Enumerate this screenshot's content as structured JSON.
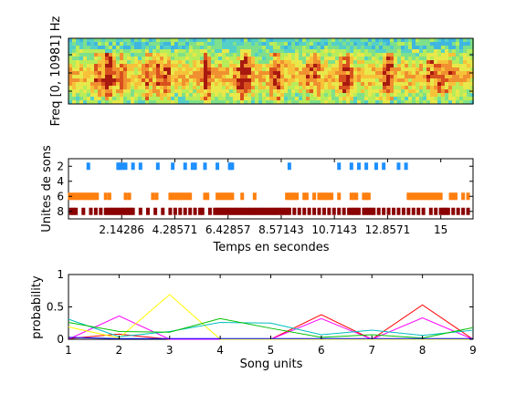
{
  "chart_data": [
    {
      "type": "heatmap",
      "title": "",
      "ylabel": "Freq [0, 10981] Hz",
      "colormap": "jet",
      "description_values": {
        "y_range_hz": [
          0,
          10981
        ],
        "x_range_s": [
          0,
          16.3
        ]
      }
    },
    {
      "type": "scatter",
      "ylabel": "Unites de sons",
      "xlabel": "Temps en secondes",
      "x_ticks": [
        "2.14286",
        "4.28571",
        "6.42857",
        "8.57143",
        "10.7143",
        "12.8571",
        "15"
      ],
      "x_tick_values": [
        2.14286,
        4.28571,
        6.42857,
        8.57143,
        10.7143,
        12.8571,
        15
      ],
      "y_ticks": [
        "2",
        "4",
        "6",
        "8"
      ],
      "y_tick_values": [
        2,
        4,
        6,
        8
      ],
      "xlim": [
        0,
        16.3
      ],
      "ylim": [
        1,
        9
      ],
      "reversed_y": true,
      "series": [
        {
          "color": "#1e90ff",
          "y": 2,
          "x": [
            0.8,
            2.0,
            2.05,
            2.1,
            2.2,
            2.3,
            2.6,
            2.9,
            3.6,
            4.2,
            4.7,
            5.0,
            5.1,
            5.5,
            6.0,
            6.5,
            6.55,
            6.6,
            8.9,
            10.9,
            11.4,
            11.7,
            12.0,
            12.4,
            12.7,
            13.3,
            13.6
          ]
        },
        {
          "color": "#ff7f0e",
          "y": 6,
          "x": [
            0.05,
            0.15,
            0.25,
            0.35,
            0.45,
            0.55,
            0.65,
            0.75,
            0.85,
            0.95,
            1.05,
            1.15,
            1.5,
            1.65,
            2.3,
            2.45,
            3.4,
            3.55,
            4.1,
            4.2,
            4.3,
            4.4,
            4.5,
            4.6,
            4.7,
            4.8,
            4.9,
            5.5,
            5.6,
            6.0,
            6.1,
            6.2,
            6.3,
            6.4,
            6.5,
            6.6,
            7.0,
            7.5,
            8.8,
            8.9,
            9.0,
            9.1,
            9.2,
            9.5,
            9.6,
            9.9,
            10.1,
            10.2,
            10.3,
            10.4,
            10.5,
            10.6,
            10.9,
            11.4,
            11.5,
            11.6,
            11.9,
            12.0,
            12.1,
            13.7,
            13.8,
            13.9,
            14.0,
            14.1,
            14.2,
            14.3,
            14.4,
            14.5,
            14.6,
            14.7,
            14.8,
            14.9,
            15.0,
            15.4,
            15.5,
            15.6,
            15.9,
            16.1
          ]
        },
        {
          "color": "#8b0000",
          "y": 8,
          "x": [
            0.1,
            0.2,
            0.3,
            0.6,
            0.9,
            1.1,
            1.3,
            1.5,
            1.6,
            1.7,
            1.8,
            1.9,
            2.0,
            2.1,
            2.2,
            2.3,
            2.4,
            2.5,
            2.6,
            2.9,
            3.2,
            3.5,
            3.8,
            4.1,
            4.3,
            4.5,
            4.7,
            4.9,
            5.1,
            5.3,
            5.4,
            5.7,
            5.9,
            6.0,
            6.1,
            6.2,
            6.3,
            6.4,
            6.5,
            6.6,
            6.7,
            6.8,
            6.9,
            7.0,
            7.1,
            7.2,
            7.3,
            7.4,
            7.5,
            7.6,
            7.7,
            7.8,
            7.9,
            8.0,
            8.1,
            8.2,
            8.3,
            8.4,
            8.5,
            8.6,
            8.7,
            8.8,
            8.9,
            9.1,
            9.3,
            9.5,
            9.7,
            9.9,
            10.1,
            10.3,
            10.5,
            10.7,
            10.9,
            11.1,
            11.3,
            11.4,
            11.5,
            11.6,
            11.7,
            11.9,
            12.0,
            12.1,
            12.2,
            12.3,
            12.5,
            12.7,
            12.9,
            13.1,
            13.3,
            13.5,
            13.7,
            13.9,
            14.1,
            14.3,
            14.6,
            14.8,
            15.0,
            15.1,
            15.2,
            15.3,
            15.5,
            15.7,
            15.9,
            16.1
          ]
        }
      ]
    },
    {
      "type": "line",
      "ylabel": "probability",
      "xlabel": "Song units",
      "x": [
        1,
        2,
        3,
        4,
        5,
        6,
        7,
        8,
        9
      ],
      "xlim": [
        1,
        9
      ],
      "ylim": [
        0,
        1
      ],
      "x_ticks": [
        "1",
        "2",
        "3",
        "4",
        "5",
        "6",
        "7",
        "8",
        "9"
      ],
      "y_ticks": [
        "0",
        "0.5",
        "1"
      ],
      "series": [
        {
          "color": "#ff0000",
          "values": [
            0.01,
            0.08,
            0.0,
            0.0,
            0.0,
            0.38,
            0.0,
            0.53,
            0.0
          ]
        },
        {
          "color": "#ff00ff",
          "values": [
            0.0,
            0.36,
            0.0,
            0.0,
            0.0,
            0.32,
            0.0,
            0.33,
            0.0
          ]
        },
        {
          "color": "#ffff00",
          "values": [
            0.19,
            0.02,
            0.69,
            0.0,
            0.0,
            0.0,
            0.0,
            0.0,
            0.0
          ]
        },
        {
          "color": "#00bfbf",
          "values": [
            0.31,
            0.04,
            0.12,
            0.26,
            0.25,
            0.07,
            0.14,
            0.06,
            0.14
          ]
        },
        {
          "color": "#00c000",
          "values": [
            0.26,
            0.12,
            0.11,
            0.32,
            0.17,
            0.03,
            0.07,
            0.02,
            0.18
          ]
        },
        {
          "color": "#0000ff",
          "values": [
            0.03,
            0.01,
            0.01,
            0.01,
            0.01,
            0.01,
            0.01,
            0.01,
            0.01
          ]
        }
      ]
    }
  ]
}
